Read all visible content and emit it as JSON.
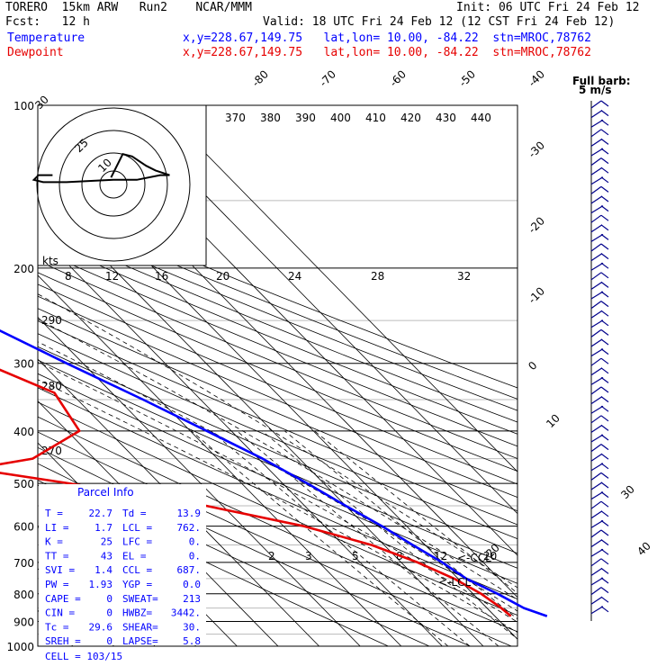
{
  "header": {
    "line1_left": "TORERO  15km ARW   Run2    NCAR/MMM",
    "line1_right": "Init: 06 UTC Fri 24 Feb 12",
    "line2_left": "Fcst:   12 h",
    "line2_right": "Valid: 18 UTC Fri 24 Feb 12 (12 CST Fri 24 Feb 12)",
    "temp_label": "Temperature",
    "dew_label": "Dewpoint",
    "temp_loc": "x,y=228.67,149.75   lat,lon= 10.00, -84.22  stn=MROC,78762",
    "dew_loc": "x,y=228.67,149.75   lat,lon= 10.00, -84.22  stn=MROC,78762",
    "barb_note_1": "Full barb:",
    "barb_note_2": "5 m/s",
    "colors": {
      "temperature": "#0000ff",
      "dewpoint": "#e60000"
    }
  },
  "chart_data": {
    "type": "skew-t",
    "pressure_levels": [
      100,
      200,
      300,
      400,
      500,
      600,
      700,
      800,
      900,
      1000
    ],
    "pressure_levels_grid": [
      100,
      150,
      200,
      250,
      300,
      350,
      400,
      450,
      500,
      550,
      600,
      650,
      700,
      750,
      800,
      850,
      900,
      950,
      1000
    ],
    "isotherm_labels": [
      "-80",
      "-70",
      "-60",
      "-50",
      "-40",
      "-30",
      "-20",
      "-10",
      "0",
      "10",
      "20",
      "30",
      "40"
    ],
    "theta_labels_top": [
      "370",
      "380",
      "390",
      "400",
      "410",
      "420",
      "430",
      "440"
    ],
    "theta_labels_left": [
      "290",
      "280",
      "270"
    ],
    "mixing_ratio_labels": [
      "2",
      "3",
      "5",
      "8",
      "12",
      "20"
    ],
    "hodograph_axis_labels": [
      "8",
      "12",
      "16",
      "20",
      "24",
      "28",
      "32"
    ],
    "hodograph_ring_labels": [
      "30",
      "25",
      "10"
    ],
    "hodograph_units": "kts",
    "annotations": {
      "lcl": "<-LCL",
      "ccl": "<-CCL"
    },
    "temperature_profile": [
      {
        "p": 100,
        "t": -76
      },
      {
        "p": 120,
        "t": -78
      },
      {
        "p": 150,
        "t": -72
      },
      {
        "p": 200,
        "t": -57
      },
      {
        "p": 250,
        "t": -45
      },
      {
        "p": 300,
        "t": -34
      },
      {
        "p": 350,
        "t": -24
      },
      {
        "p": 400,
        "t": -16
      },
      {
        "p": 450,
        "t": -9
      },
      {
        "p": 500,
        "t": -4
      },
      {
        "p": 550,
        "t": 0
      },
      {
        "p": 600,
        "t": 4
      },
      {
        "p": 650,
        "t": 7
      },
      {
        "p": 700,
        "t": 10
      },
      {
        "p": 750,
        "t": 12
      },
      {
        "p": 800,
        "t": 16
      },
      {
        "p": 850,
        "t": 19
      },
      {
        "p": 880,
        "t": 22.7
      }
    ],
    "dewpoint_profile": [
      {
        "p": 100,
        "t": -88
      },
      {
        "p": 150,
        "t": -83
      },
      {
        "p": 200,
        "t": -68
      },
      {
        "p": 250,
        "t": -62
      },
      {
        "p": 300,
        "t": -54
      },
      {
        "p": 340,
        "t": -44
      },
      {
        "p": 400,
        "t": -47
      },
      {
        "p": 450,
        "t": -65
      },
      {
        "p": 470,
        "t": -82
      },
      {
        "p": 500,
        "t": -62
      },
      {
        "p": 550,
        "t": -34
      },
      {
        "p": 600,
        "t": -15
      },
      {
        "p": 650,
        "t": -3
      },
      {
        "p": 700,
        "t": 4
      },
      {
        "p": 750,
        "t": 9
      },
      {
        "p": 800,
        "t": 12
      },
      {
        "p": 850,
        "t": 13.5
      },
      {
        "p": 880,
        "t": 13.9
      }
    ],
    "hodograph_points": [
      [
        -1,
        -3
      ],
      [
        4,
        -13
      ],
      [
        8,
        -12
      ],
      [
        14,
        -8
      ],
      [
        18,
        -6
      ],
      [
        24,
        -4
      ],
      [
        20,
        -4
      ],
      [
        10,
        -2
      ],
      [
        0,
        -2
      ],
      [
        -20,
        -1
      ],
      [
        -30,
        -1
      ],
      [
        -34,
        -2
      ],
      [
        -32,
        -4
      ],
      [
        -26,
        -4
      ]
    ]
  },
  "parcel_info": {
    "title": "Parcel Info",
    "rows": [
      [
        "T  =",
        "22.7",
        "Td =",
        "13.9"
      ],
      [
        "LI =",
        "1.7",
        "LCL =",
        "762."
      ],
      [
        "K  =",
        "25",
        "LFC =",
        "0."
      ],
      [
        "TT =",
        "43",
        "EL  =",
        "0."
      ],
      [
        "SVI =",
        "1.4",
        "CCL =",
        "687."
      ],
      [
        "PW =",
        "1.93",
        "YGP =",
        "0.0"
      ],
      [
        "CAPE =",
        "0",
        "SWEAT=",
        "213"
      ],
      [
        "CIN =",
        "0",
        "HWBZ=",
        "3442."
      ],
      [
        "Tc =",
        "29.6",
        "SHEAR=",
        "30."
      ],
      [
        "SREH =",
        "0",
        "LAPSE=",
        "5.8"
      ]
    ],
    "cell": "CELL = 103/15"
  }
}
